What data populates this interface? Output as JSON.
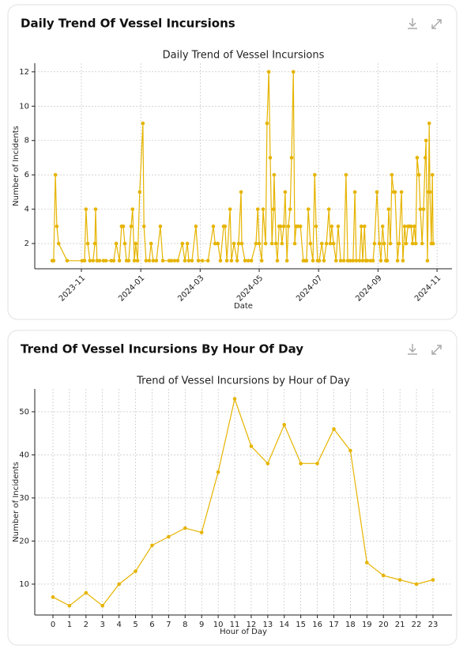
{
  "cards": [
    {
      "title": "Daily Trend Of Vessel Incursions"
    },
    {
      "title": "Trend Of Vessel Incursions By Hour Of Day"
    }
  ],
  "chart_data": [
    {
      "type": "line",
      "title": "Daily Trend of Vessel Incursions",
      "xlabel": "Date",
      "ylabel": "Number of Incidents",
      "color": "#e6b400",
      "grid": true,
      "x": [
        2023.751,
        2023.755,
        2023.76,
        2023.764,
        2023.769,
        2023.793,
        2023.835,
        2023.842,
        2023.846,
        2023.851,
        2023.857,
        2023.866,
        2023.871,
        2023.873,
        2023.877,
        2023.884,
        2023.895,
        2023.902,
        2023.917,
        2023.924,
        2023.931,
        2023.94,
        2023.946,
        2023.951,
        2023.955,
        2023.96,
        2023.966,
        2023.973,
        2023.977,
        2023.982,
        2023.986,
        2023.991,
        2023.997,
        2024.006,
        2024.009,
        2024.015,
        2024.024,
        2024.029,
        2024.035,
        2024.044,
        2024.055,
        2024.062,
        2024.08,
        2024.086,
        2024.095,
        2024.104,
        2024.117,
        2024.124,
        2024.131,
        2024.135,
        2024.144,
        2024.155,
        2024.162,
        2024.173,
        2024.189,
        2024.204,
        2024.209,
        2024.217,
        2024.224,
        2024.233,
        2024.237,
        2024.242,
        2024.251,
        2024.255,
        2024.262,
        2024.271,
        2024.275,
        2024.282,
        2024.284,
        2024.293,
        2024.302,
        2024.311,
        2024.324,
        2024.329,
        2024.333,
        2024.34,
        2024.344,
        2024.351,
        2024.355,
        2024.36,
        2024.364,
        2024.369,
        2024.373,
        2024.375,
        2024.38,
        2024.384,
        2024.389,
        2024.393,
        2024.397,
        2024.402,
        2024.406,
        2024.411,
        2024.415,
        2024.42,
        2024.424,
        2024.429,
        2024.433,
        2024.437,
        2024.442,
        2024.449,
        2024.457,
        2024.462,
        2024.466,
        2024.471,
        2024.477,
        2024.484,
        2024.489,
        2024.493,
        2024.497,
        2024.502,
        2024.509,
        2024.515,
        2024.522,
        2024.529,
        2024.533,
        2024.537,
        2024.542,
        2024.549,
        2024.555,
        2024.562,
        2024.571,
        2024.577,
        2024.582,
        2024.589,
        2024.597,
        2024.602,
        2024.606,
        2024.615,
        2024.62,
        2024.624,
        2024.629,
        2024.633,
        2024.637,
        2024.646,
        2024.653,
        2024.657,
        2024.664,
        2024.671,
        2024.675,
        2024.68,
        2024.684,
        2024.689,
        2024.693,
        2024.697,
        2024.702,
        2024.706,
        2024.711,
        2024.715,
        2024.722,
        2024.726,
        2024.733,
        2024.737,
        2024.742,
        2024.746,
        2024.751,
        2024.755,
        2024.76,
        2024.764,
        2024.769,
        2024.773,
        2024.777,
        2024.782,
        2024.786,
        2024.791,
        2024.795,
        2024.8,
        2024.802,
        2024.806,
        2024.809,
        2024.811,
        2024.813,
        2024.817,
        2024.82,
        2024.822
      ],
      "values": [
        1,
        1,
        6,
        3,
        2,
        1,
        1,
        1,
        4,
        2,
        1,
        1,
        2,
        4,
        1,
        1,
        1,
        1,
        1,
        1,
        2,
        1,
        3,
        3,
        2,
        1,
        1,
        3,
        4,
        1,
        2,
        1,
        5,
        9,
        3,
        1,
        1,
        2,
        1,
        1,
        3,
        1,
        1,
        1,
        1,
        1,
        2,
        1,
        2,
        1,
        1,
        3,
        1,
        1,
        1,
        3,
        2,
        2,
        1,
        3,
        3,
        1,
        4,
        1,
        2,
        1,
        2,
        5,
        2,
        1,
        1,
        1,
        2,
        4,
        2,
        1,
        4,
        2,
        9,
        12,
        7,
        2,
        4,
        6,
        2,
        1,
        3,
        3,
        2,
        3,
        5,
        1,
        3,
        4,
        7,
        12,
        2,
        3,
        3,
        3,
        1,
        1,
        1,
        4,
        2,
        1,
        6,
        3,
        1,
        1,
        2,
        1,
        2,
        4,
        2,
        3,
        2,
        1,
        3,
        1,
        1,
        6,
        1,
        1,
        1,
        5,
        1,
        1,
        3,
        1,
        3,
        1,
        1,
        1,
        1,
        2,
        5,
        2,
        1,
        3,
        2,
        1,
        1,
        4,
        2,
        6,
        5,
        5,
        1,
        2,
        5,
        1,
        3,
        2,
        3,
        3,
        3,
        2,
        3,
        2,
        7,
        6,
        4,
        2,
        4,
        7,
        8,
        1,
        5,
        9,
        5,
        2,
        6,
        2
      ],
      "xlim": [
        2023.702,
        2024.875
      ],
      "ylim": [
        0.53,
        12.5
      ],
      "xticks": [
        {
          "value": 2023.833,
          "label": "2023-11"
        },
        {
          "value": 2024.0,
          "label": "2024-01"
        },
        {
          "value": 2024.167,
          "label": "2024-03"
        },
        {
          "value": 2024.333,
          "label": "2024-05"
        },
        {
          "value": 2024.5,
          "label": "2024-07"
        },
        {
          "value": 2024.667,
          "label": "2024-09"
        },
        {
          "value": 2024.833,
          "label": "2024-11"
        }
      ],
      "yticks": [
        2,
        4,
        6,
        8,
        10,
        12
      ]
    },
    {
      "type": "line",
      "title": "Trend of Vessel Incursions by Hour of Day",
      "xlabel": "Hour of Day",
      "ylabel": "Number of Incidents",
      "color": "#e6b400",
      "grid": true,
      "x": [
        0,
        1,
        2,
        3,
        4,
        5,
        6,
        7,
        8,
        9,
        10,
        11,
        12,
        13,
        14,
        15,
        16,
        17,
        18,
        19,
        20,
        21,
        22,
        23
      ],
      "values": [
        7,
        5,
        8,
        5,
        10,
        13,
        19,
        21,
        23,
        22,
        36,
        53,
        42,
        38,
        47,
        38,
        38,
        46,
        41,
        15,
        12,
        11,
        10,
        11
      ],
      "xlim": [
        -1.1,
        24.15
      ],
      "ylim": [
        2.84,
        55.3
      ],
      "xticks": [
        0,
        1,
        2,
        3,
        4,
        5,
        6,
        7,
        8,
        9,
        10,
        11,
        12,
        13,
        14,
        15,
        16,
        17,
        18,
        19,
        20,
        21,
        22,
        23
      ],
      "yticks": [
        10,
        20,
        30,
        40,
        50
      ]
    }
  ]
}
